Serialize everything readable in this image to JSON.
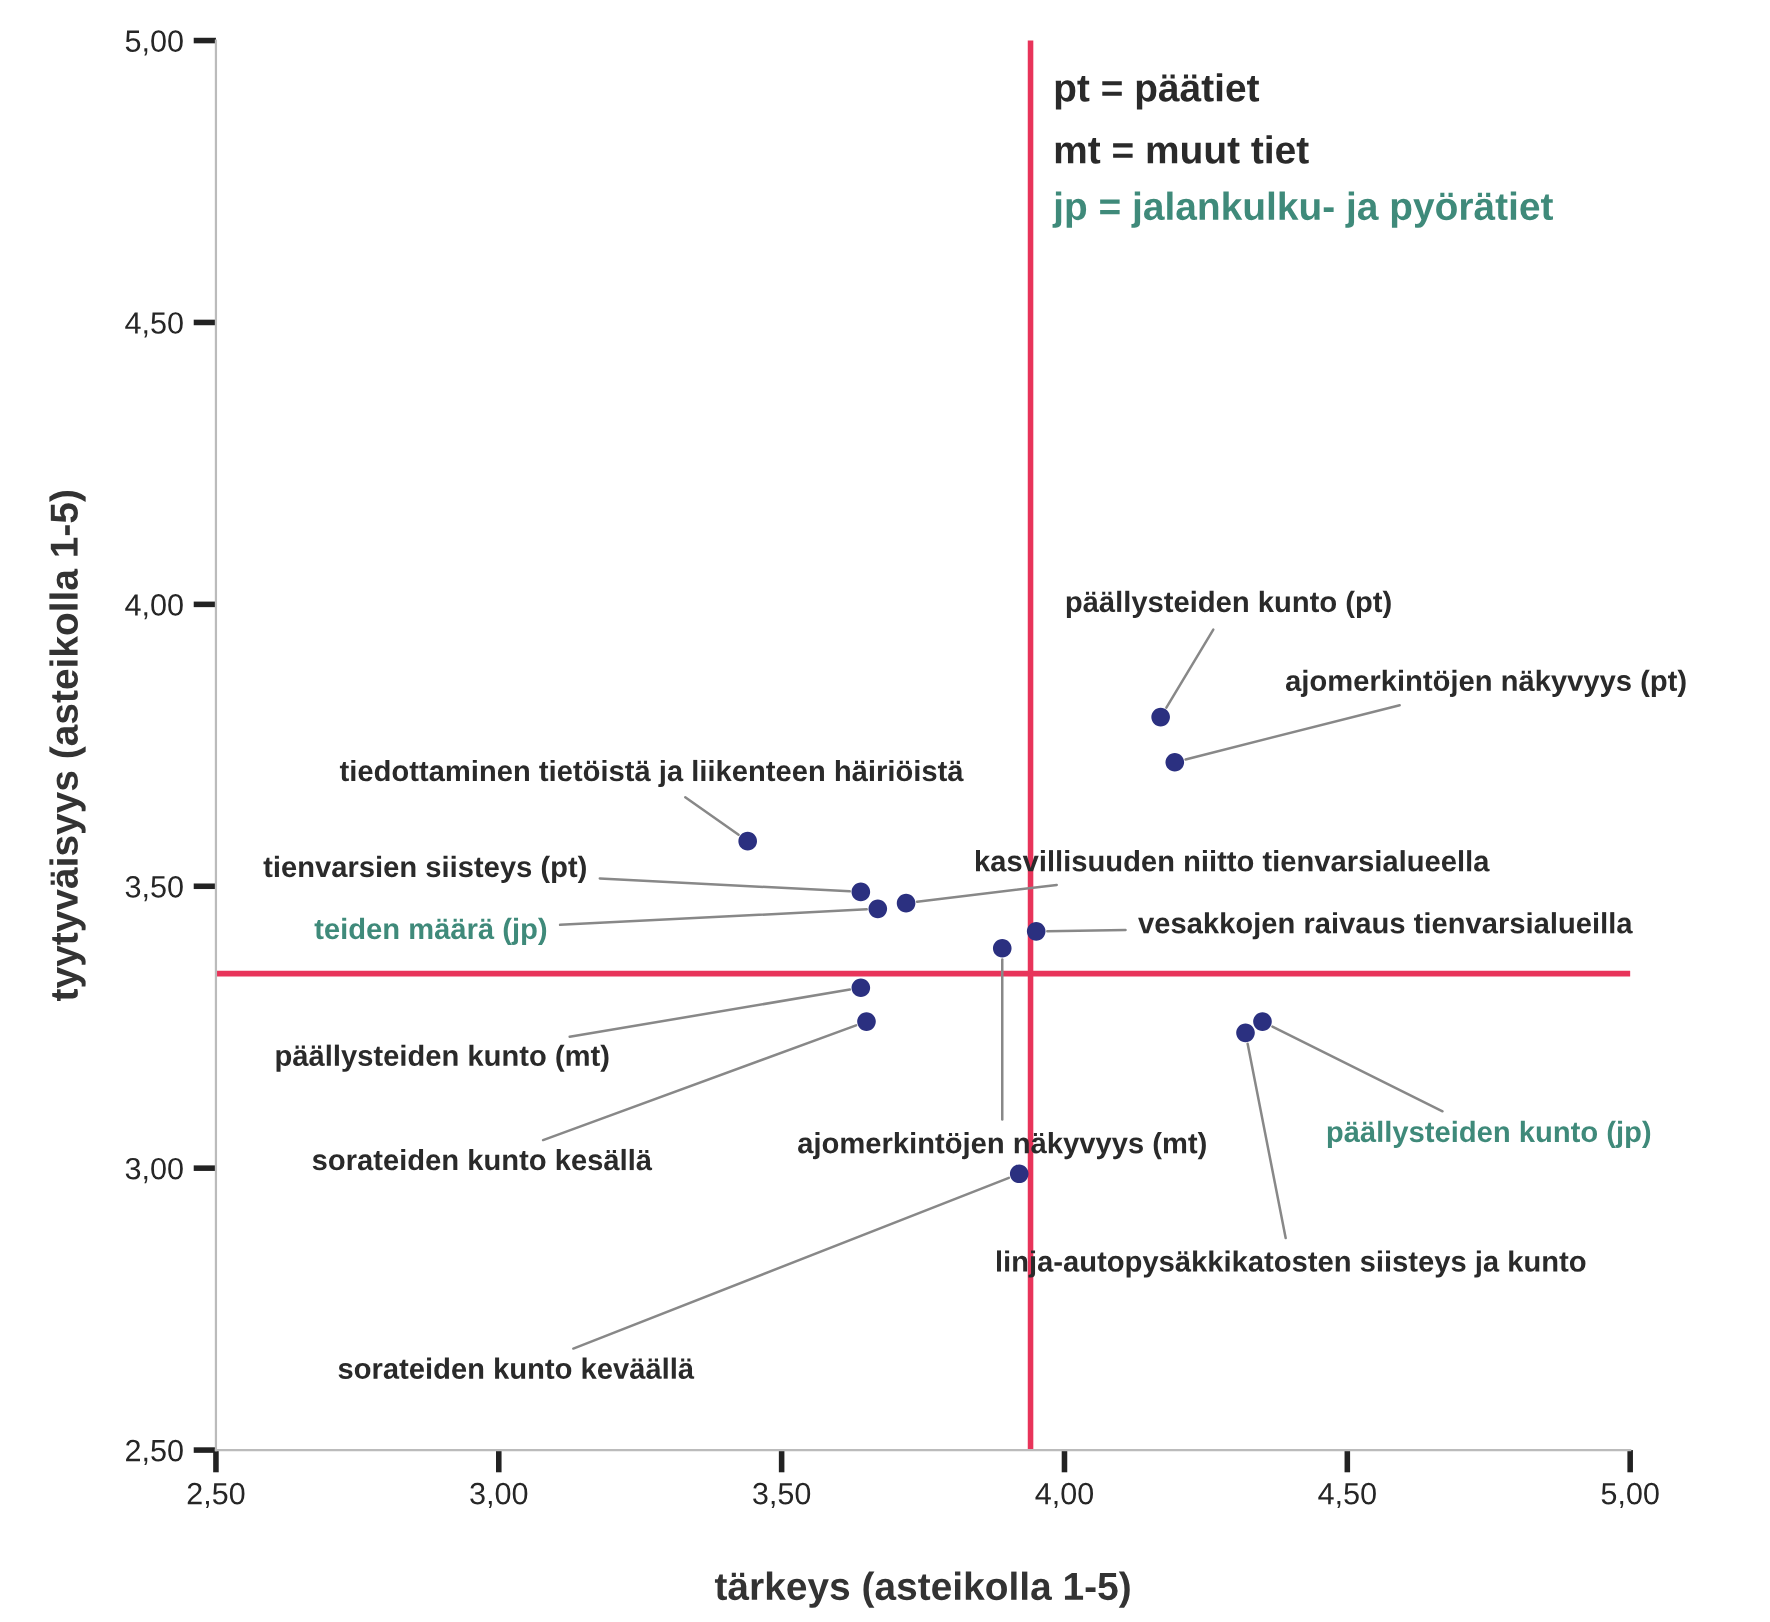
{
  "chart_data": {
    "type": "scatter",
    "xlabel": "tärkeys (asteikolla 1-5)",
    "ylabel": "tyytyväisyys (asteikolla 1-5)",
    "x": [
      4.17,
      4.195,
      3.44,
      3.64,
      3.67,
      3.72,
      3.95,
      3.89,
      3.64,
      3.65,
      3.92,
      4.32,
      4.35
    ],
    "series": [
      {
        "color": "#2b3080",
        "values": [
          3.8,
          3.72,
          3.58,
          3.49,
          3.46,
          3.47,
          3.42,
          3.39,
          3.32,
          3.26,
          2.99,
          3.24,
          3.26
        ]
      }
    ],
    "marker": "circle",
    "grid": false,
    "xlim": [
      2.5,
      5.0
    ],
    "ylim": [
      2.5,
      5.0
    ],
    "xticks": [
      {
        "value": 2.5,
        "label": "2,50"
      },
      {
        "value": 3.0,
        "label": "3,00"
      },
      {
        "value": 3.5,
        "label": "3,50"
      },
      {
        "value": 4.0,
        "label": "4,00"
      },
      {
        "value": 4.5,
        "label": "4,50"
      },
      {
        "value": 5.0,
        "label": "5,00"
      }
    ],
    "yticks": [
      {
        "value": 2.5,
        "label": "2,50"
      },
      {
        "value": 3.0,
        "label": "3,00"
      },
      {
        "value": 3.5,
        "label": "3,50"
      },
      {
        "value": 4.0,
        "label": "4,00"
      },
      {
        "value": 4.5,
        "label": "4,50"
      },
      {
        "value": 5.0,
        "label": "5,00"
      }
    ],
    "ref_lines": [
      {
        "axis": "x",
        "value": 3.94,
        "color": "#e8345a"
      },
      {
        "axis": "y",
        "value": 3.345,
        "color": "#e8345a"
      }
    ],
    "annotations": [
      {
        "text": "päällysteiden kunto (pt)",
        "x": 4.17,
        "y": 3.8
      },
      {
        "text": "ajomerkintöjen näkyvyys (pt)",
        "x": 4.195,
        "y": 3.72
      },
      {
        "text": "tiedottaminen tietöistä ja liikenteen häiriöistä",
        "x": 3.44,
        "y": 3.58
      },
      {
        "text": "tienvarsien siisteys (pt)",
        "x": 3.64,
        "y": 3.49
      },
      {
        "text": "teiden määrä (jp)",
        "x": 3.67,
        "y": 3.46
      },
      {
        "text": "kasvillisuuden niitto tienvarsialueella",
        "x": 3.72,
        "y": 3.47
      },
      {
        "text": "vesakkojen raivaus tienvarsialueilla",
        "x": 3.95,
        "y": 3.42
      },
      {
        "text": "ajomerkintöjen näkyvyys (mt)",
        "x": 3.89,
        "y": 3.39
      },
      {
        "text": "päällysteiden kunto (mt)",
        "x": 3.64,
        "y": 3.32
      },
      {
        "text": "sorateiden kunto kesällä",
        "x": 3.65,
        "y": 3.26
      },
      {
        "text": "sorateiden kunto keväällä",
        "x": 3.92,
        "y": 2.99
      },
      {
        "text": "linja-autopysäkkikatosten siisteys ja kunto",
        "x": 4.32,
        "y": 3.24
      },
      {
        "text": "päällysteiden kunto (jp)",
        "x": 4.35,
        "y": 3.26
      },
      "pt = päätiet",
      "mt = muut tiet",
      "jp = jalankulku- ja pyörätiet"
    ]
  }
}
